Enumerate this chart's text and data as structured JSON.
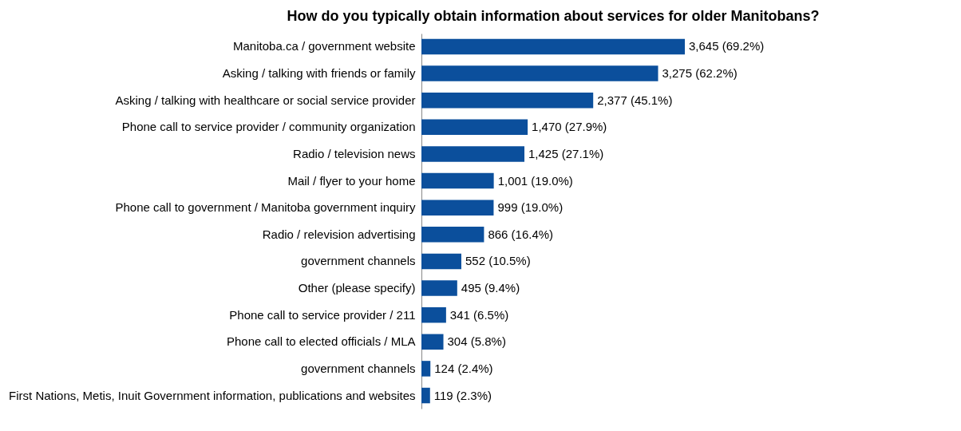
{
  "chart_data": {
    "type": "bar",
    "orientation": "horizontal",
    "title": "How do you typically obtain information about services for older Manitobans?",
    "categories": [
      "Manitoba.ca / government website",
      "Asking / talking with friends or family",
      "Asking / talking with healthcare or social service provider",
      "Phone call to service provider / community organization",
      "Radio / television news",
      "Mail / flyer to your home",
      "Phone call to government / Manitoba government inquiry",
      "Radio / relevision advertising",
      "government channels",
      "Other (please specify)",
      "Phone call to service provider / 211",
      "Phone call to elected officials / MLA",
      "government channels",
      "First Nations, Metis, Inuit Government information, publications and websites"
    ],
    "values": [
      3645,
      3275,
      2377,
      1470,
      1425,
      1001,
      999,
      866,
      552,
      495,
      341,
      304,
      124,
      119
    ],
    "value_labels": [
      "3,645 (69.2%)",
      "3,275 (62.2%)",
      "2,377 (45.1%)",
      "1,470 (27.9%)",
      "1,425 (27.1%)",
      "1,001 (19.0%)",
      "999 (19.0%)",
      "866 (16.4%)",
      "552 (10.5%)",
      "495 (9.4%)",
      "341 (6.5%)",
      "304 (5.8%)",
      "124 (2.4%)",
      "119 (2.3%)"
    ],
    "color": "#0b4f9c"
  }
}
